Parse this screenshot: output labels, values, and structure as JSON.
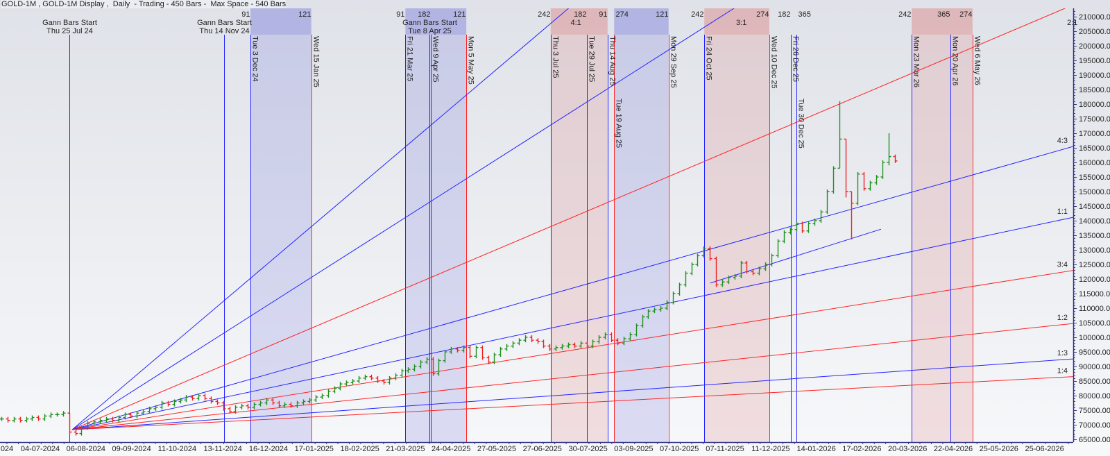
{
  "title": "GOLD-1M , GOLD-1M Display ,  Daily  - Trading - 450 Bars -  Max Space - 540 Bars",
  "chart_data": {
    "type": "ohlc-bar",
    "ylim": [
      65000,
      210000
    ],
    "y_ticks": [
      "210000.00",
      "205000.00",
      "200000.00",
      "195000.00",
      "190000.00",
      "185000.00",
      "180000.00",
      "175000.00",
      "170000.00",
      "165000.00",
      "160000.00",
      "155000.00",
      "150000.00",
      "145000.00",
      "140000.00",
      "135000.00",
      "130000.00",
      "125000.00",
      "120000.00",
      "115000.00",
      "110000.00",
      "105000.00",
      "100000.00",
      "95000.00",
      "90000.00",
      "85000.00",
      "80000.00",
      "75000.00",
      "70000.00",
      "65000.00"
    ],
    "x_ticks": [
      "024",
      "04-07-2024",
      "06-08-2024",
      "09-09-2024",
      "11-10-2024",
      "13-11-2024",
      "16-12-2024",
      "17-01-2025",
      "18-02-2025",
      "21-03-2025",
      "24-04-2025",
      "27-05-2025",
      "27-06-2025",
      "30-07-2025",
      "03-09-2025",
      "07-10-2025",
      "07-11-2025",
      "11-12-2025",
      "14-01-2026",
      "17-02-2026",
      "20-03-2026",
      "22-04-2026",
      "25-05-2026",
      "25-06-2026"
    ],
    "colors": {
      "up": "#1f8f1f",
      "down": "#ee2222",
      "blue_line": "#2424ff",
      "red_line": "#ff2424",
      "blue_zone": "#6e6edc",
      "pink_zone": "#dc7878"
    },
    "close": [
      72000,
      71500,
      72000,
      71500,
      72000,
      72500,
      72000,
      73000,
      73500,
      73500,
      74000,
      67500,
      67000,
      69000,
      70500,
      71000,
      71500,
      72000,
      71500,
      72500,
      73500,
      73000,
      74000,
      74500,
      75500,
      76000,
      77500,
      77000,
      78000,
      78500,
      79500,
      79000,
      80000,
      79000,
      78000,
      77500,
      75500,
      74500,
      76000,
      76500,
      76000,
      77000,
      77500,
      78500,
      77500,
      76500,
      77000,
      76500,
      77500,
      78000,
      78500,
      79500,
      80000,
      81500,
      82500,
      84000,
      84500,
      85000,
      86000,
      86500,
      86000,
      85000,
      84500,
      86000,
      87000,
      88500,
      89000,
      90000,
      91500,
      92500,
      87500,
      92000,
      95000,
      96000,
      95500,
      96500,
      93500,
      96500,
      93000,
      91500,
      94000,
      96000,
      97000,
      98000,
      99000,
      100000,
      99000,
      98500,
      97000,
      96000,
      96500,
      97000,
      97500,
      97000,
      98000,
      97000,
      98500,
      100000,
      101000,
      99000,
      98000,
      99500,
      101000,
      104000,
      107000,
      109000,
      109500,
      110000,
      112000,
      115000,
      118000,
      122000,
      125000,
      128000,
      130500,
      127000,
      118000,
      119000,
      120500,
      121000,
      125500,
      122500,
      122000,
      123500,
      125000,
      128000,
      133000,
      136000,
      137000,
      139000,
      136500,
      139000,
      140000,
      143000,
      150000,
      158000,
      168000,
      150000,
      146000,
      156000,
      151000,
      153000,
      155000,
      160000,
      162000,
      160500
    ],
    "extreme_bars": [
      {
        "i": 11,
        "high": 74000,
        "low": 66800
      },
      {
        "i": 136,
        "high": 181000,
        "low": 158000
      },
      {
        "i": 137,
        "high": 168000,
        "low": 148000
      },
      {
        "i": 138,
        "high": 150000,
        "low": 133600
      },
      {
        "i": 144,
        "high": 170000,
        "low": 159000
      }
    ],
    "gann_fan": {
      "origin_date": "Thu 25 Jul 24",
      "origin_price": 68300,
      "points_per_day_1x1": 101,
      "lines": [
        {
          "label": "4:1",
          "ratio": 4,
          "color": "blue"
        },
        {
          "label": "3:1",
          "ratio": 3,
          "color": "blue"
        },
        {
          "label": "2:1",
          "ratio": 2,
          "color": "red"
        },
        {
          "label": "4:3",
          "ratio": 1.3333,
          "color": "blue"
        },
        {
          "label": "1:1",
          "ratio": 1,
          "color": "blue"
        },
        {
          "label": "3:4",
          "ratio": 0.75,
          "color": "red"
        },
        {
          "label": "1:2",
          "ratio": 0.5,
          "color": "red"
        },
        {
          "label": "1:3",
          "ratio": 0.3333,
          "color": "blue"
        },
        {
          "label": "1:4",
          "ratio": 0.25,
          "color": "red"
        }
      ]
    },
    "trendline": {
      "start_date": "28-10-2025",
      "start_price": 118600,
      "end_date": "02-03-2026",
      "end_price": 137100,
      "color": "blue"
    },
    "time_lines": [
      {
        "date": "Thu 25 Jul 24",
        "color": "blue",
        "header": "Gann Bars Start",
        "count": ""
      },
      {
        "date": "Thu 14 Nov 24",
        "color": "blue",
        "header": "Gann Bars Start",
        "count": ""
      },
      {
        "date": "Tue 3 Dec 24",
        "color": "blue",
        "header": "",
        "count": "91"
      },
      {
        "date": "Wed 15 Jan 25",
        "color": "red",
        "header": "",
        "count": "121"
      },
      {
        "date": "Fri 21 Mar 25",
        "color": "blue",
        "header": "",
        "count": "91"
      },
      {
        "date": "Tue 8 Apr 25",
        "color": "blue",
        "header": "Gann Bars Start",
        "count": ""
      },
      {
        "date": "Wed 9 Apr 25",
        "color": "blue",
        "header": "",
        "count": "182"
      },
      {
        "date": "Mon 5 May 25",
        "color": "red",
        "header": "",
        "count": "121"
      },
      {
        "date": "Thu 3 Jul 25",
        "color": "blue",
        "header": "",
        "count": "242"
      },
      {
        "date": "Tue 29 Jul 25",
        "color": "blue",
        "header": "",
        "count": "182"
      },
      {
        "date": "Thu 14 Aug 25",
        "color": "blue",
        "header": "",
        "count": "91"
      },
      {
        "date": "Tue 19 Aug 25",
        "color": "red",
        "header": "",
        "count": "274"
      },
      {
        "date": "Mon 29 Sep 25",
        "color": "red",
        "header": "",
        "count": "121"
      },
      {
        "date": "Fri 24 Oct 25",
        "color": "blue",
        "header": "",
        "count": "242"
      },
      {
        "date": "Wed 10 Dec 25",
        "color": "red",
        "header": "",
        "count": "274"
      },
      {
        "date": "Fri 26 Dec 25",
        "color": "blue",
        "header": "",
        "count": "182"
      },
      {
        "date": "Tue 30 Dec 25",
        "color": "blue",
        "header": "",
        "count": "365"
      },
      {
        "date": "Mon 23 Mar 26",
        "color": "blue",
        "header": "",
        "count": "242"
      },
      {
        "date": "Mon 20 Apr 26",
        "color": "blue",
        "header": "",
        "count": "365"
      },
      {
        "date": "Wed 6 May 26",
        "color": "red",
        "header": "",
        "count": "274"
      }
    ],
    "zones": [
      {
        "from": "Tue 3 Dec 24",
        "to": "Wed 15 Jan 25",
        "color": "blue"
      },
      {
        "from": "Fri 21 Mar 25",
        "to": "Mon 5 May 25",
        "color": "blue"
      },
      {
        "from": "Thu 3 Jul 25",
        "to": "Thu 14 Aug 25",
        "color": "pink"
      },
      {
        "from": "Tue 19 Aug 25",
        "to": "Mon 29 Sep 25",
        "color": "blue"
      },
      {
        "from": "Fri 24 Oct 25",
        "to": "Wed 10 Dec 25",
        "color": "pink"
      },
      {
        "from": "Mon 23 Mar 26",
        "to": "Wed 6 May 26",
        "color": "pink"
      }
    ]
  }
}
